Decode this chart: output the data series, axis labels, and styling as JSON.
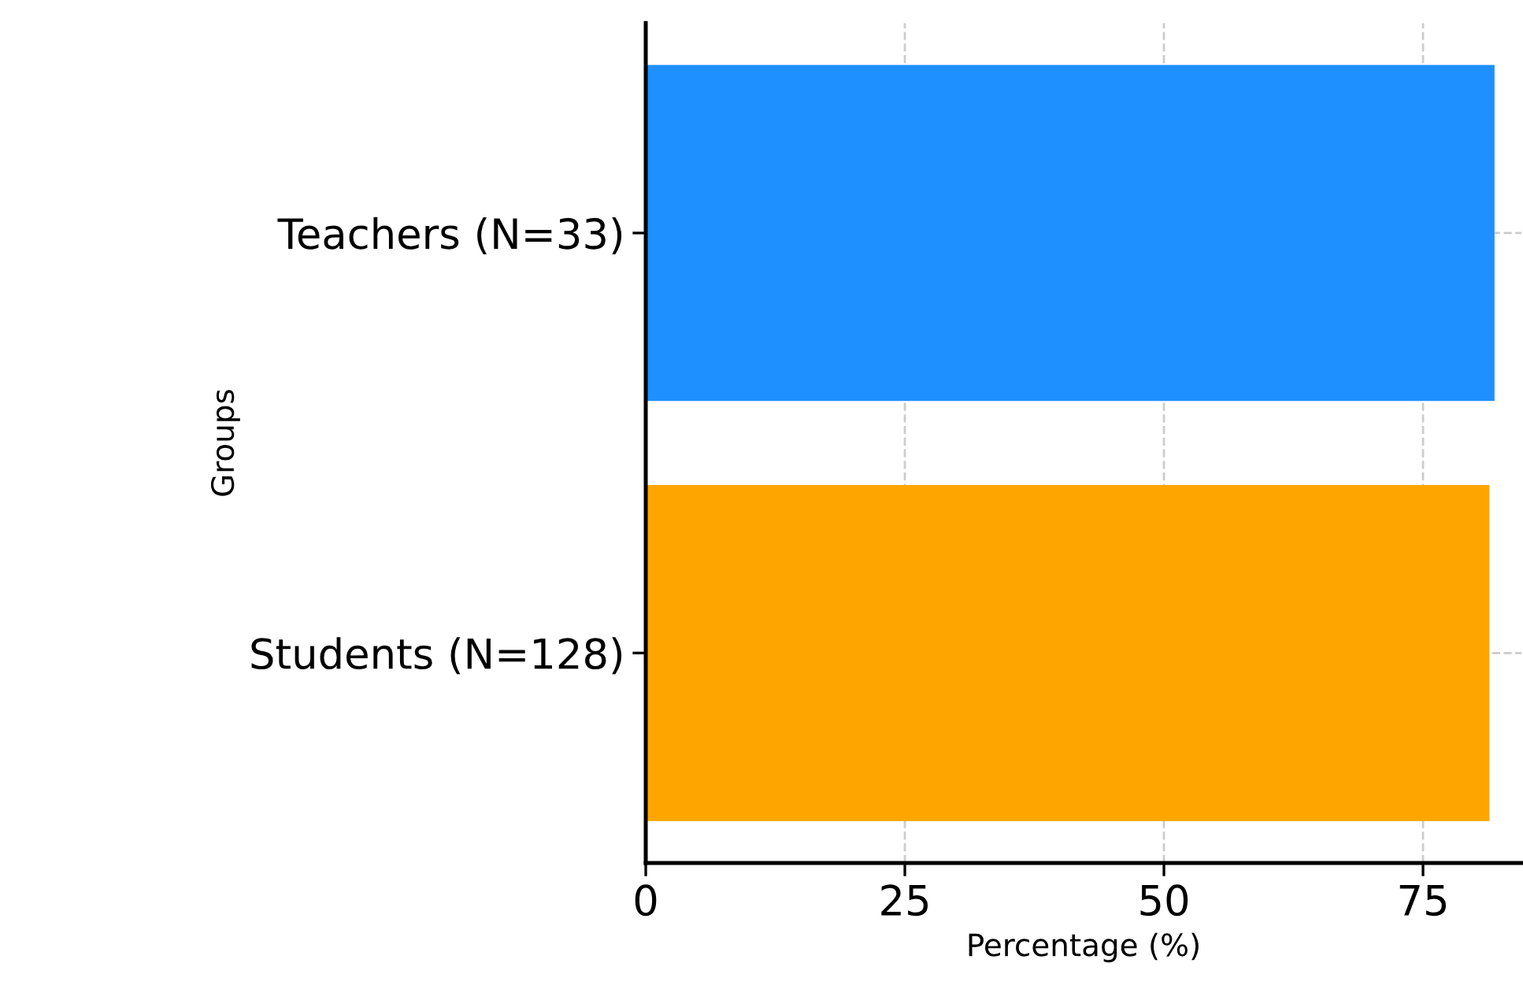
{
  "chart_data": {
    "type": "bar",
    "orientation": "horizontal",
    "xlabel": "Percentage (%)",
    "ylabel": "Groups",
    "categories": [
      "Teachers (N=33)",
      "Students (N=128)"
    ],
    "values": [
      81.9,
      81.4
    ],
    "colors": [
      "#1e90ff",
      "#ffa500"
    ],
    "xlim": [
      0,
      84.5
    ],
    "xticks": [
      0,
      25,
      50,
      75
    ],
    "grid": true
  }
}
